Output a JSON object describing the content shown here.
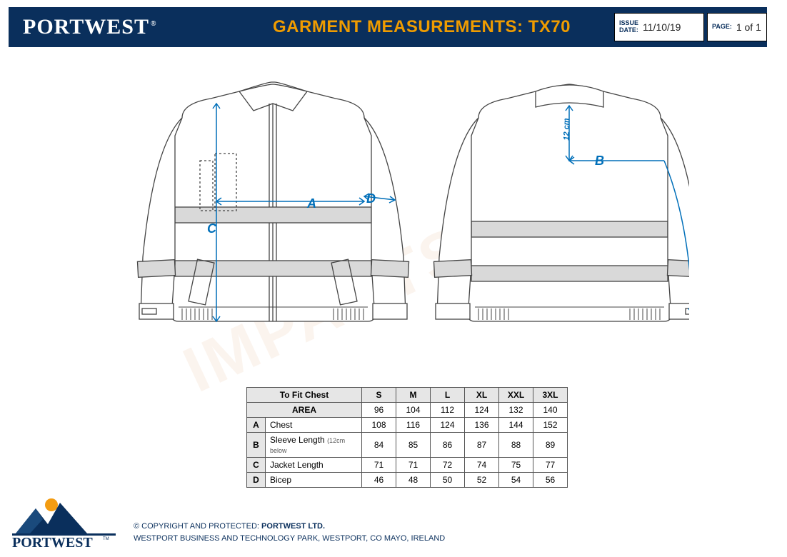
{
  "header": {
    "brand": "PORTWEST",
    "brand_reg": "®",
    "title": "GARMENT MEASUREMENTS: TX70",
    "issue_label": "ISSUE\nDATE:",
    "issue_date": "11/10/19",
    "page_label": "PAGE:",
    "page_value": "1 of 1",
    "colors": {
      "bar": "#0a2f5c",
      "title": "#ef9c00",
      "text": "#ffffff"
    }
  },
  "diagram": {
    "annotation_color": "#006fb9",
    "jacket_stroke": "#444444",
    "jacket_fill": "#ffffff",
    "reflective_fill": "#d9d9d9",
    "front": {
      "labels": {
        "A": "A",
        "C": "C",
        "D": "D"
      },
      "positions": {
        "A": [
          245,
          175
        ],
        "C": [
          105,
          210
        ],
        "D": [
          328,
          168
        ]
      }
    },
    "back": {
      "labels": {
        "B": "B",
        "sleeve_note": "12 cm"
      },
      "positions": {
        "B": [
          648,
          115
        ],
        "sleeve_note": [
          593,
          95
        ]
      }
    }
  },
  "table": {
    "header_fit": "To Fit Chest",
    "header_area": "AREA",
    "sizes": [
      "S",
      "M",
      "L",
      "XL",
      "XXL",
      "3XL"
    ],
    "fit_values": [
      96,
      104,
      112,
      124,
      132,
      140
    ],
    "rows": [
      {
        "letter": "A",
        "name": "Chest",
        "note": "",
        "values": [
          108,
          116,
          124,
          136,
          144,
          152
        ]
      },
      {
        "letter": "B",
        "name": "Sleeve Length",
        "note": "(12cm below",
        "values": [
          84,
          85,
          86,
          87,
          88,
          89
        ]
      },
      {
        "letter": "C",
        "name": "Jacket Length",
        "note": "",
        "values": [
          71,
          71,
          72,
          74,
          75,
          77
        ]
      },
      {
        "letter": "D",
        "name": "Bicep",
        "note": "",
        "values": [
          46,
          48,
          50,
          52,
          54,
          56
        ]
      }
    ],
    "colors": {
      "header_bg": "#e6e6e6",
      "border": "#555555",
      "cell_bg": "#ffffff"
    },
    "font_size": 12
  },
  "footer": {
    "copyright": "© COPYRIGHT AND PROTECTED: ",
    "company": "PORTWEST LTD.",
    "address": "WESTPORT BUSINESS AND TECHNOLOGY PARK, WESTPORT, CO MAYO, IRELAND",
    "brand": "PORTWEST",
    "logo_colors": {
      "sun": "#f39c12",
      "mountain": "#0a2f5c",
      "underline": "#0a2f5c"
    }
  },
  "watermark": {
    "text": "IMPACTSHOP",
    "color": "rgba(200,120,40,0.08)"
  }
}
